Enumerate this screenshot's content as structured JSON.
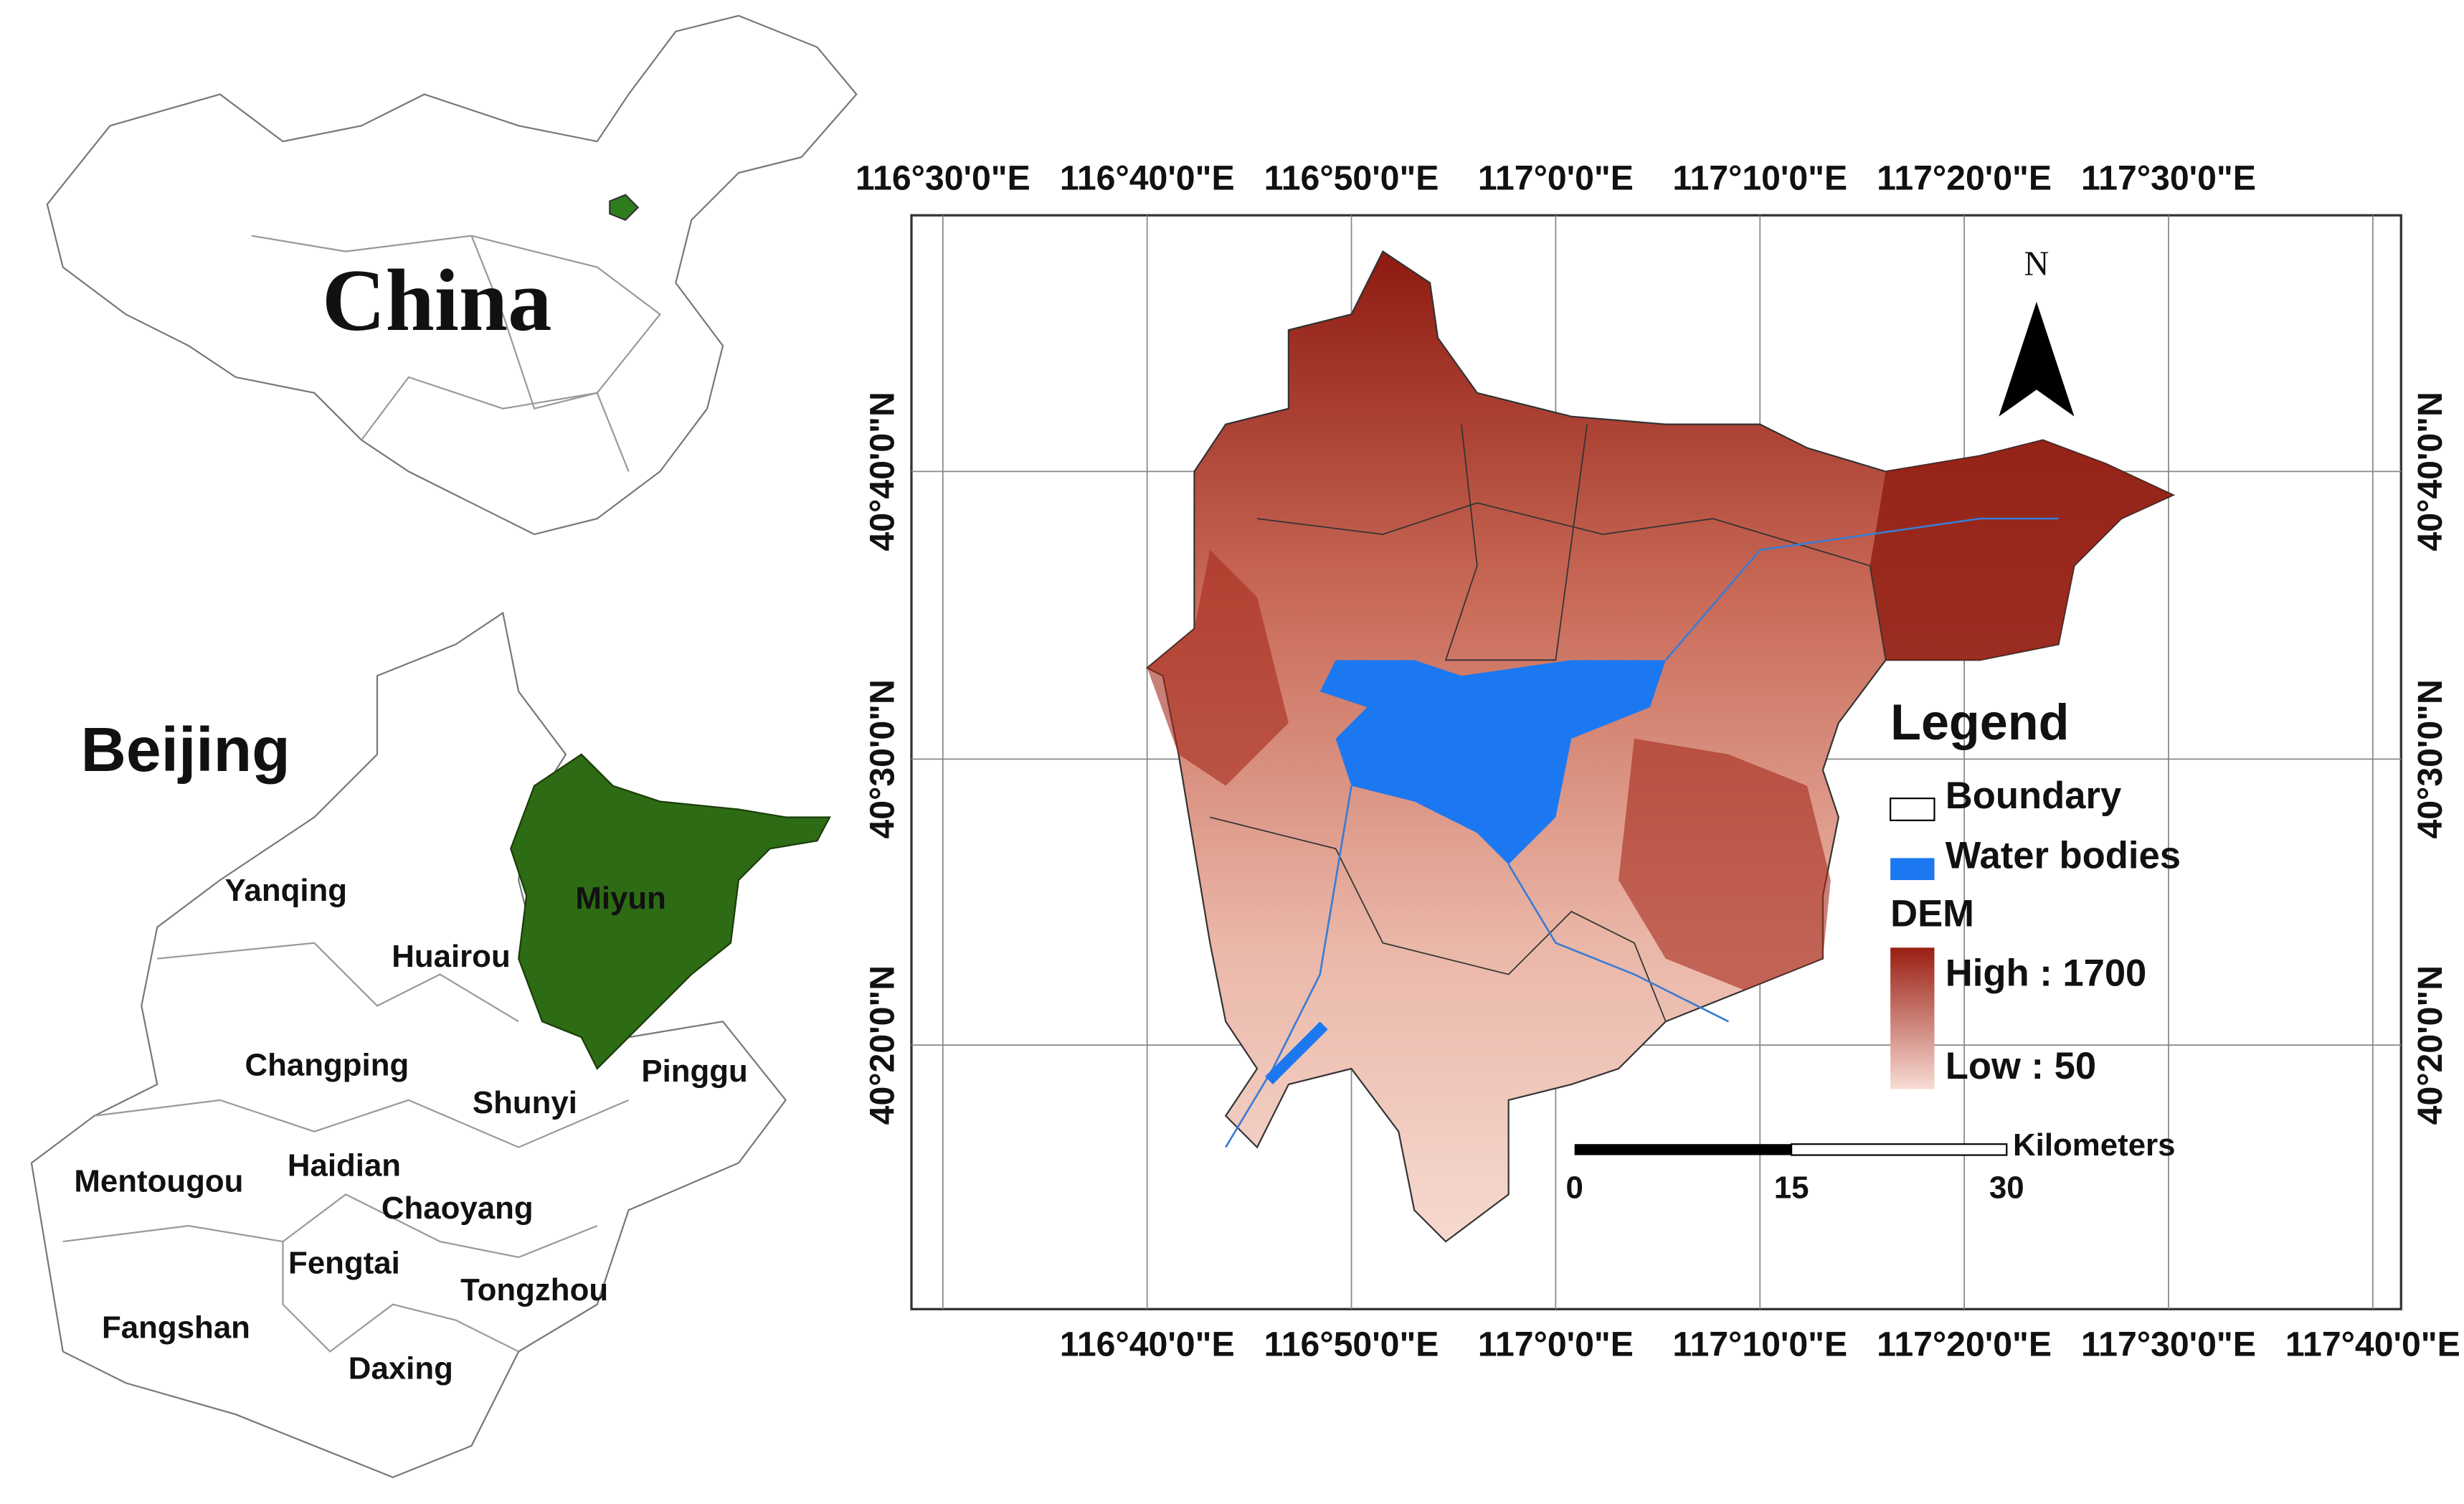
{
  "china_inset": {
    "label": "China"
  },
  "beijing_inset": {
    "label": "Beijing",
    "districts": [
      "Yanqing",
      "Huairou",
      "Miyun",
      "Changping",
      "Shunyi",
      "Pinggu",
      "Mentougou",
      "Haidian",
      "Chaoyang",
      "Fengtai",
      "Tongzhou",
      "Fangshan",
      "Daxing"
    ]
  },
  "main_map": {
    "top_labels": [
      "116°30'0\"E",
      "116°40'0\"E",
      "116°50'0\"E",
      "117°0'0\"E",
      "117°10'0\"E",
      "117°20'0\"E",
      "117°30'0\"E"
    ],
    "bottom_labels": [
      "116°40'0\"E",
      "116°50'0\"E",
      "117°0'0\"E",
      "117°10'0\"E",
      "117°20'0\"E",
      "117°30'0\"E",
      "117°40'0\"E"
    ],
    "left_labels": [
      "40°40'0\"N",
      "40°30'0\"N",
      "40°20'0\"N"
    ],
    "right_labels": [
      "40°40'0\"N",
      "40°30'0\"N",
      "40°20'0\"N"
    ],
    "north": "N",
    "legend": {
      "title": "Legend",
      "items": [
        "Boundary",
        "Water bodies"
      ],
      "dem_title": "DEM",
      "high": "High : 1700",
      "low": "Low : 50"
    },
    "scale": {
      "ticks": [
        "0",
        "15",
        "30"
      ],
      "unit": "Kilometers"
    }
  }
}
